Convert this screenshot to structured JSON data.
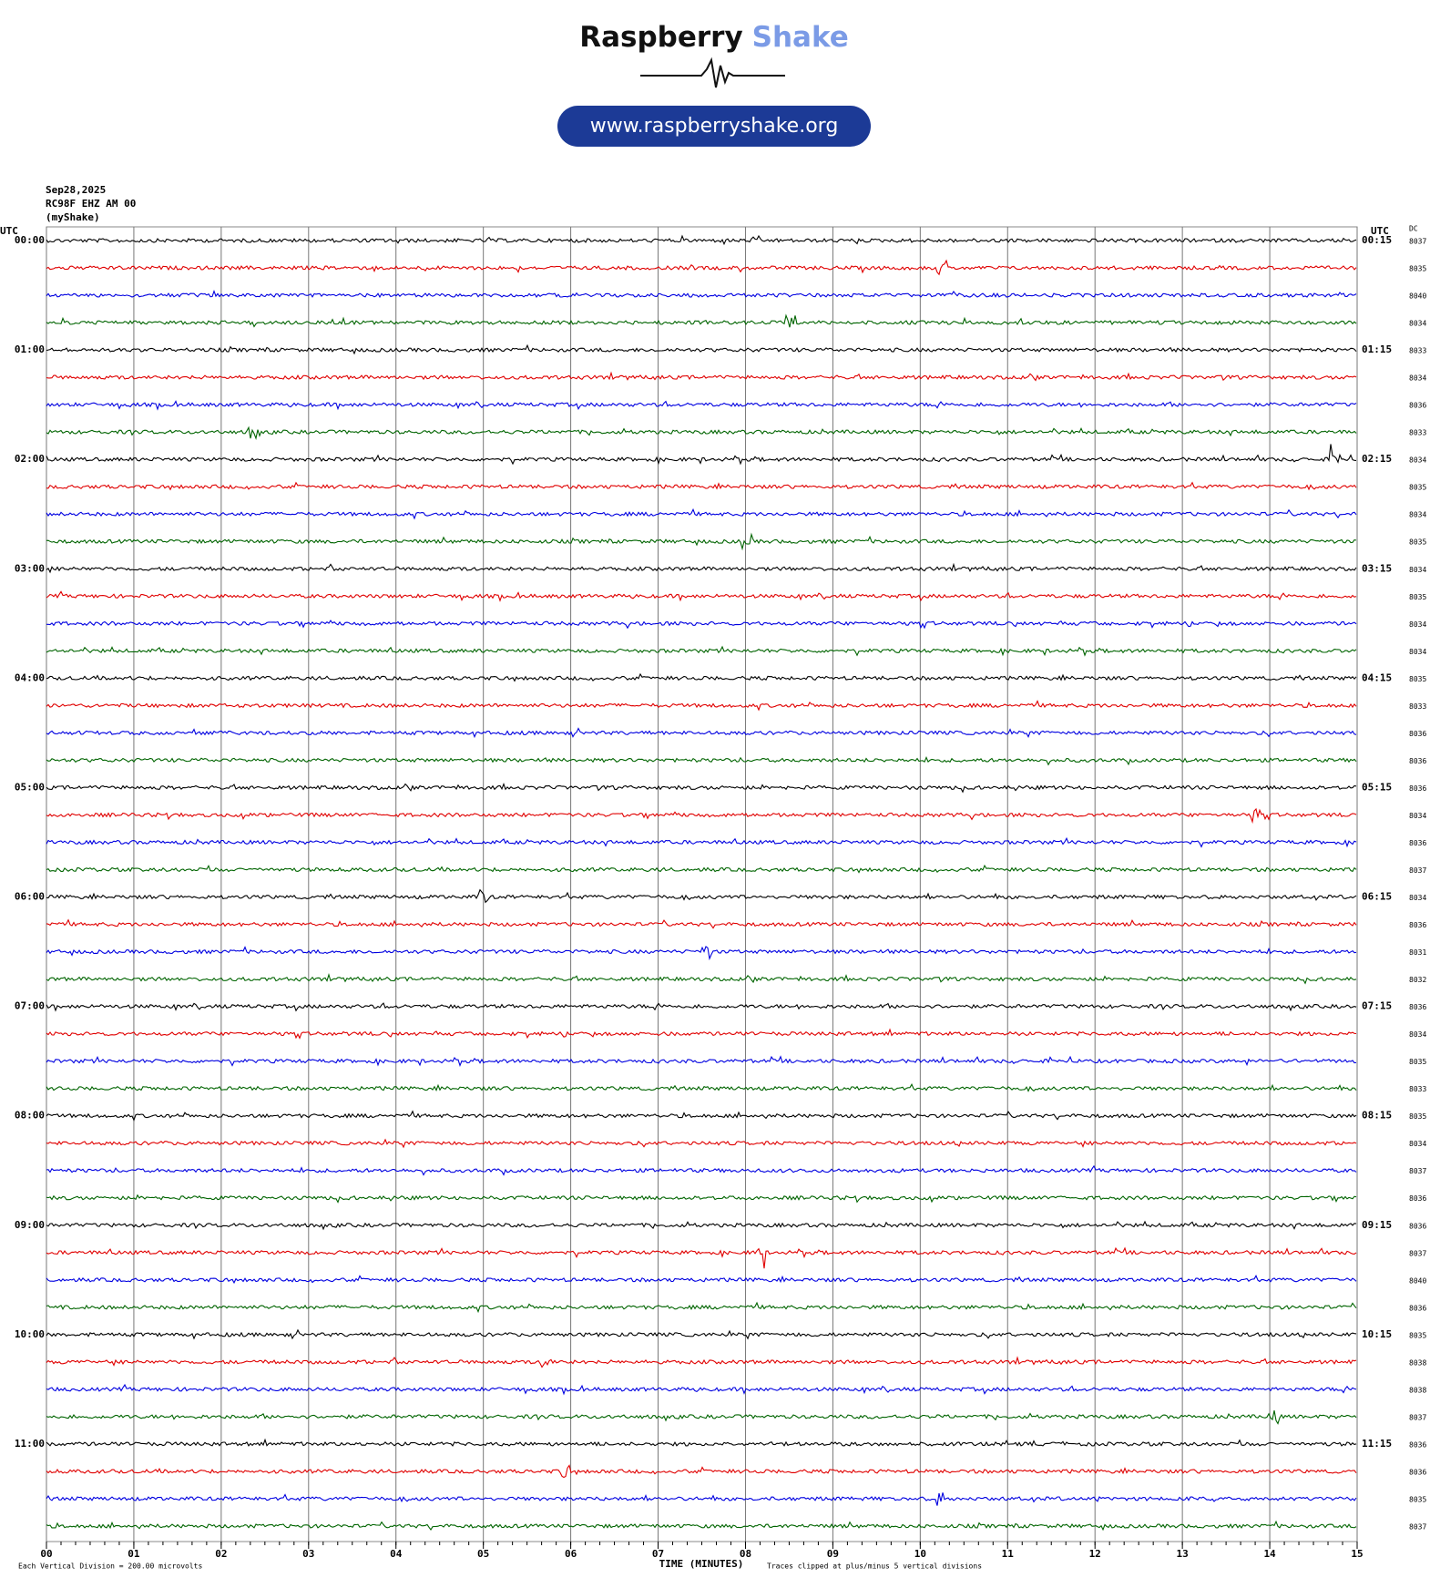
{
  "chart_data": {
    "type": "helicorder",
    "brand": {
      "name_dark": "Raspberry",
      "name_light": "Shake",
      "url": "www.raspberryshake.org"
    },
    "date": "Sep28,2025",
    "station": "RC98F EHZ AM 00",
    "network": "(myShake)",
    "left_axis_label": "UTC",
    "right_axis_label": "UTC",
    "dc_label": "DC",
    "left_labels": [
      "00:00",
      "01:00",
      "02:00",
      "03:00",
      "04:00",
      "05:00",
      "06:00",
      "07:00",
      "08:00",
      "09:00",
      "10:00",
      "11:00"
    ],
    "right_labels": [
      "00:15",
      "01:15",
      "02:15",
      "03:15",
      "04:15",
      "05:15",
      "06:15",
      "07:15",
      "08:15",
      "09:15",
      "10:15",
      "11:15"
    ],
    "dc_values": [
      8037,
      8035,
      8040,
      8034,
      8033,
      8034,
      8036,
      8033,
      8034,
      8035,
      8034,
      8035,
      8034,
      8035,
      8034,
      8034,
      8035,
      8033,
      8036,
      8036,
      8036,
      8034,
      8036,
      8037,
      8034,
      8036,
      8031,
      8032,
      8036,
      8034,
      8035,
      8033,
      8035,
      8034,
      8037,
      8036,
      8036,
      8037,
      8040,
      8036,
      8035,
      8038,
      8038,
      8037,
      8036,
      8036,
      8035,
      8037
    ],
    "trace_colors": [
      "#000000",
      "#e00000",
      "#0000e0",
      "#006400"
    ],
    "xlim": [
      0,
      15
    ],
    "xticks": [
      {
        "value": 0,
        "label": "00"
      },
      {
        "value": 1,
        "label": "01"
      },
      {
        "value": 2,
        "label": "02"
      },
      {
        "value": 3,
        "label": "03"
      },
      {
        "value": 4,
        "label": "04"
      },
      {
        "value": 5,
        "label": "05"
      },
      {
        "value": 6,
        "label": "06"
      },
      {
        "value": 7,
        "label": "07"
      },
      {
        "value": 8,
        "label": "08"
      },
      {
        "value": 9,
        "label": "09"
      },
      {
        "value": 10,
        "label": "10"
      },
      {
        "value": 11,
        "label": "11"
      },
      {
        "value": 12,
        "label": "12"
      },
      {
        "value": 13,
        "label": "13"
      },
      {
        "value": 14,
        "label": "14"
      },
      {
        "value": 15,
        "label": "15"
      }
    ],
    "xlabel": "TIME (MINUTES)",
    "scale_note": "Each Vertical Division =  200.00 microvolts",
    "clip_note": "Traces clipped at plus/minus 5 vertical divisions",
    "grid": true
  }
}
